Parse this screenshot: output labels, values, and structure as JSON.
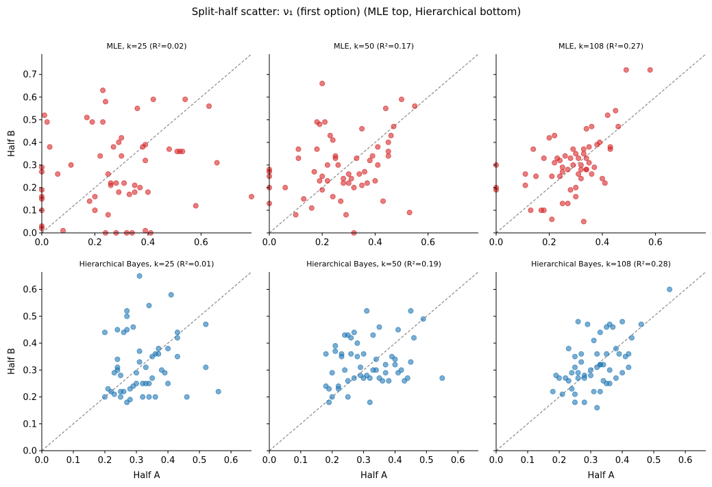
{
  "figure": {
    "suptitle": "Split-half scatter: ν₁ (first option)  (MLE top, Hierarchical bottom)"
  },
  "chart_data": [
    {
      "type": "scatter",
      "title": "MLE, k=25  (R²=0.02)",
      "xlabel": "",
      "ylabel": "Half B",
      "xlim": [
        0,
        0.79
      ],
      "ylim": [
        0,
        0.79
      ],
      "xticks": [
        "0.0",
        "0.2",
        "0.4",
        "0.6"
      ],
      "yticks": [
        "0.0",
        "0.1",
        "0.2",
        "0.3",
        "0.4",
        "0.5",
        "0.6",
        "0.7"
      ],
      "show_xtick_labels": true,
      "show_ytick_labels": true,
      "color": "#d62728",
      "x": [
        0.0,
        0.0,
        0.0,
        0.0,
        0.0,
        0.0,
        0.0,
        0.0,
        0.01,
        0.02,
        0.03,
        0.06,
        0.08,
        0.11,
        0.17,
        0.18,
        0.19,
        0.2,
        0.2,
        0.22,
        0.23,
        0.23,
        0.24,
        0.24,
        0.25,
        0.25,
        0.26,
        0.26,
        0.27,
        0.28,
        0.28,
        0.29,
        0.29,
        0.3,
        0.3,
        0.31,
        0.32,
        0.33,
        0.34,
        0.35,
        0.35,
        0.36,
        0.37,
        0.38,
        0.39,
        0.39,
        0.39,
        0.4,
        0.41,
        0.42,
        0.48,
        0.51,
        0.52,
        0.53,
        0.54,
        0.58,
        0.63,
        0.66,
        0.79
      ],
      "y": [
        0.02,
        0.03,
        0.1,
        0.15,
        0.16,
        0.19,
        0.27,
        0.29,
        0.52,
        0.49,
        0.38,
        0.26,
        0.01,
        0.3,
        0.51,
        0.14,
        0.49,
        0.1,
        0.16,
        0.34,
        0.63,
        0.49,
        0.0,
        0.58,
        0.26,
        0.08,
        0.22,
        0.21,
        0.38,
        0.0,
        0.22,
        0.4,
        0.18,
        0.42,
        0.34,
        0.22,
        0.0,
        0.17,
        0.0,
        0.21,
        0.18,
        0.55,
        0.2,
        0.38,
        0.32,
        0.39,
        0.01,
        0.18,
        0.0,
        0.59,
        0.37,
        0.36,
        0.36,
        0.36,
        0.59,
        0.12,
        0.56,
        0.31,
        0.16
      ]
    },
    {
      "type": "scatter",
      "title": "MLE, k=50  (R²=0.17)",
      "xlabel": "",
      "ylabel": "",
      "xlim": [
        0,
        0.79
      ],
      "ylim": [
        0,
        0.79
      ],
      "xticks": [
        "0.0",
        "0.2",
        "0.4",
        "0.6"
      ],
      "yticks": [],
      "show_xtick_labels": true,
      "show_ytick_labels": false,
      "color": "#d62728",
      "x": [
        0.0,
        0.0,
        0.0,
        0.0,
        0.0,
        0.06,
        0.1,
        0.11,
        0.11,
        0.13,
        0.16,
        0.17,
        0.18,
        0.18,
        0.19,
        0.19,
        0.2,
        0.2,
        0.2,
        0.21,
        0.22,
        0.22,
        0.23,
        0.24,
        0.24,
        0.25,
        0.25,
        0.26,
        0.27,
        0.28,
        0.28,
        0.29,
        0.3,
        0.3,
        0.31,
        0.32,
        0.32,
        0.33,
        0.34,
        0.35,
        0.35,
        0.36,
        0.37,
        0.38,
        0.39,
        0.4,
        0.41,
        0.41,
        0.43,
        0.44,
        0.45,
        0.45,
        0.45,
        0.46,
        0.47,
        0.5,
        0.53,
        0.55
      ],
      "y": [
        0.28,
        0.27,
        0.25,
        0.2,
        0.13,
        0.2,
        0.08,
        0.33,
        0.37,
        0.15,
        0.11,
        0.27,
        0.37,
        0.49,
        0.23,
        0.48,
        0.19,
        0.25,
        0.66,
        0.49,
        0.23,
        0.3,
        0.43,
        0.41,
        0.16,
        0.33,
        0.34,
        0.3,
        0.14,
        0.22,
        0.24,
        0.08,
        0.26,
        0.22,
        0.24,
        0.0,
        0.2,
        0.33,
        0.26,
        0.21,
        0.46,
        0.27,
        0.22,
        0.32,
        0.34,
        0.23,
        0.38,
        0.3,
        0.14,
        0.55,
        0.4,
        0.36,
        0.34,
        0.43,
        0.47,
        0.59,
        0.09,
        0.56
      ]
    },
    {
      "type": "scatter",
      "title": "MLE, k=108  (R²=0.27)",
      "xlabel": "",
      "ylabel": "",
      "xlim": [
        0,
        0.79
      ],
      "ylim": [
        0,
        0.79
      ],
      "xticks": [
        "0.0",
        "0.2",
        "0.4",
        "0.6"
      ],
      "yticks": [],
      "show_xtick_labels": true,
      "show_ytick_labels": false,
      "color": "#d62728",
      "x": [
        0.0,
        0.0,
        0.0,
        0.11,
        0.11,
        0.13,
        0.14,
        0.15,
        0.17,
        0.18,
        0.18,
        0.2,
        0.21,
        0.21,
        0.22,
        0.22,
        0.23,
        0.24,
        0.24,
        0.25,
        0.25,
        0.25,
        0.26,
        0.27,
        0.27,
        0.28,
        0.28,
        0.29,
        0.29,
        0.3,
        0.3,
        0.3,
        0.31,
        0.31,
        0.32,
        0.32,
        0.32,
        0.33,
        0.33,
        0.33,
        0.34,
        0.34,
        0.34,
        0.34,
        0.35,
        0.35,
        0.36,
        0.36,
        0.37,
        0.38,
        0.39,
        0.4,
        0.41,
        0.42,
        0.43,
        0.43,
        0.45,
        0.46,
        0.49,
        0.58
      ],
      "y": [
        0.3,
        0.2,
        0.19,
        0.21,
        0.26,
        0.1,
        0.37,
        0.25,
        0.1,
        0.33,
        0.1,
        0.42,
        0.25,
        0.06,
        0.43,
        0.31,
        0.33,
        0.32,
        0.25,
        0.29,
        0.13,
        0.27,
        0.34,
        0.13,
        0.28,
        0.19,
        0.33,
        0.3,
        0.37,
        0.35,
        0.16,
        0.2,
        0.26,
        0.33,
        0.3,
        0.28,
        0.24,
        0.05,
        0.37,
        0.35,
        0.33,
        0.46,
        0.28,
        0.28,
        0.38,
        0.31,
        0.47,
        0.26,
        0.29,
        0.39,
        0.4,
        0.24,
        0.22,
        0.52,
        0.37,
        0.38,
        0.54,
        0.47,
        0.72,
        0.72
      ]
    },
    {
      "type": "scatter",
      "title": "Hierarchical Bayes, k=25  (R²=0.01)",
      "xlabel": "Half A",
      "ylabel": "Half B",
      "xlim": [
        0,
        0.665
      ],
      "ylim": [
        0,
        0.665
      ],
      "xticks": [
        "0.0",
        "0.1",
        "0.2",
        "0.3",
        "0.4",
        "0.5",
        "0.6"
      ],
      "yticks": [
        "0.0",
        "0.1",
        "0.2",
        "0.3",
        "0.4",
        "0.5",
        "0.6"
      ],
      "show_xtick_labels": true,
      "show_ytick_labels": true,
      "color": "#1f77b4",
      "x": [
        0.2,
        0.2,
        0.21,
        0.22,
        0.23,
        0.23,
        0.24,
        0.24,
        0.24,
        0.24,
        0.25,
        0.25,
        0.25,
        0.26,
        0.26,
        0.27,
        0.27,
        0.27,
        0.27,
        0.28,
        0.28,
        0.29,
        0.29,
        0.3,
        0.3,
        0.31,
        0.31,
        0.31,
        0.32,
        0.32,
        0.33,
        0.33,
        0.34,
        0.34,
        0.34,
        0.35,
        0.35,
        0.36,
        0.36,
        0.37,
        0.37,
        0.38,
        0.39,
        0.4,
        0.4,
        0.41,
        0.43,
        0.43,
        0.43,
        0.46,
        0.52,
        0.52,
        0.56
      ],
      "y": [
        0.2,
        0.44,
        0.23,
        0.22,
        0.29,
        0.21,
        0.34,
        0.31,
        0.3,
        0.45,
        0.2,
        0.28,
        0.22,
        0.44,
        0.22,
        0.18,
        0.52,
        0.5,
        0.45,
        0.19,
        0.23,
        0.46,
        0.24,
        0.25,
        0.29,
        0.65,
        0.37,
        0.33,
        0.2,
        0.25,
        0.31,
        0.25,
        0.25,
        0.54,
        0.2,
        0.27,
        0.35,
        0.36,
        0.2,
        0.36,
        0.38,
        0.3,
        0.29,
        0.38,
        0.25,
        0.58,
        0.35,
        0.44,
        0.42,
        0.2,
        0.47,
        0.31,
        0.22
      ]
    },
    {
      "type": "scatter",
      "title": "Hierarchical Bayes, k=50  (R²=0.19)",
      "xlabel": "Half A",
      "ylabel": "",
      "xlim": [
        0,
        0.665
      ],
      "ylim": [
        0,
        0.665
      ],
      "xticks": [
        "0.0",
        "0.1",
        "0.2",
        "0.3",
        "0.4",
        "0.5",
        "0.6"
      ],
      "yticks": [],
      "show_xtick_labels": true,
      "show_ytick_labels": false,
      "color": "#1f77b4",
      "x": [
        0.18,
        0.18,
        0.19,
        0.19,
        0.2,
        0.2,
        0.21,
        0.21,
        0.22,
        0.22,
        0.23,
        0.23,
        0.24,
        0.24,
        0.25,
        0.25,
        0.25,
        0.26,
        0.26,
        0.27,
        0.27,
        0.28,
        0.28,
        0.29,
        0.29,
        0.3,
        0.3,
        0.31,
        0.31,
        0.32,
        0.32,
        0.33,
        0.33,
        0.34,
        0.34,
        0.35,
        0.35,
        0.36,
        0.37,
        0.37,
        0.38,
        0.39,
        0.4,
        0.4,
        0.41,
        0.41,
        0.42,
        0.43,
        0.44,
        0.45,
        0.45,
        0.46,
        0.49,
        0.55
      ],
      "y": [
        0.36,
        0.24,
        0.18,
        0.23,
        0.29,
        0.2,
        0.39,
        0.37,
        0.23,
        0.24,
        0.36,
        0.35,
        0.43,
        0.3,
        0.2,
        0.43,
        0.26,
        0.42,
        0.36,
        0.27,
        0.44,
        0.4,
        0.35,
        0.28,
        0.31,
        0.36,
        0.27,
        0.52,
        0.28,
        0.27,
        0.18,
        0.43,
        0.3,
        0.3,
        0.34,
        0.27,
        0.46,
        0.26,
        0.32,
        0.29,
        0.26,
        0.35,
        0.34,
        0.32,
        0.29,
        0.45,
        0.3,
        0.26,
        0.27,
        0.33,
        0.52,
        0.42,
        0.49,
        0.27
      ]
    },
    {
      "type": "scatter",
      "title": "Hierarchical Bayes, k=108  (R²=0.28)",
      "xlabel": "Half A",
      "ylabel": "",
      "xlim": [
        0,
        0.665
      ],
      "ylim": [
        0,
        0.665
      ],
      "xticks": [
        "0.0",
        "0.1",
        "0.2",
        "0.3",
        "0.4",
        "0.5",
        "0.6"
      ],
      "yticks": [],
      "show_xtick_labels": true,
      "show_ytick_labels": false,
      "color": "#1f77b4",
      "x": [
        0.18,
        0.19,
        0.2,
        0.21,
        0.22,
        0.23,
        0.23,
        0.24,
        0.24,
        0.25,
        0.25,
        0.25,
        0.25,
        0.26,
        0.26,
        0.26,
        0.27,
        0.27,
        0.28,
        0.28,
        0.28,
        0.29,
        0.3,
        0.3,
        0.31,
        0.31,
        0.32,
        0.32,
        0.32,
        0.33,
        0.33,
        0.33,
        0.33,
        0.34,
        0.34,
        0.35,
        0.35,
        0.35,
        0.36,
        0.36,
        0.36,
        0.37,
        0.38,
        0.38,
        0.39,
        0.4,
        0.4,
        0.41,
        0.42,
        0.42,
        0.43,
        0.46,
        0.55
      ],
      "y": [
        0.22,
        0.28,
        0.27,
        0.21,
        0.27,
        0.38,
        0.26,
        0.29,
        0.23,
        0.18,
        0.21,
        0.35,
        0.31,
        0.29,
        0.48,
        0.27,
        0.33,
        0.36,
        0.27,
        0.18,
        0.28,
        0.47,
        0.28,
        0.3,
        0.22,
        0.41,
        0.31,
        0.36,
        0.16,
        0.32,
        0.32,
        0.44,
        0.22,
        0.32,
        0.26,
        0.36,
        0.25,
        0.46,
        0.3,
        0.25,
        0.47,
        0.46,
        0.38,
        0.27,
        0.36,
        0.29,
        0.48,
        0.35,
        0.36,
        0.31,
        0.42,
        0.47,
        0.6
      ]
    }
  ]
}
